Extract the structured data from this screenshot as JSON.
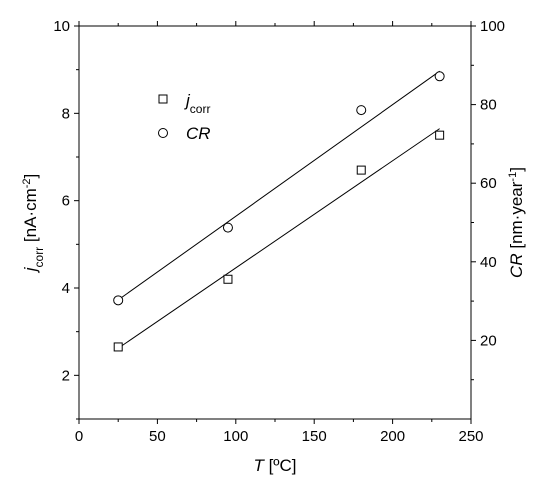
{
  "chart_data": {
    "type": "scatter",
    "xlabel": {
      "var": "T",
      "unit": " [ºC]"
    },
    "ylabel_left": {
      "var": "j",
      "sub": "corr",
      "unit": " [nA·cm",
      "sup": "-2",
      "close": "]"
    },
    "ylabel_right": {
      "var": "CR",
      "unit": " [nm·year",
      "sup": "-1",
      "close": "]"
    },
    "xlim": [
      0,
      250
    ],
    "ylim_left": [
      1,
      10
    ],
    "ylim_right": [
      0,
      100
    ],
    "x_ticks": [
      0,
      50,
      100,
      150,
      200,
      250
    ],
    "y_left_ticks": [
      2,
      4,
      6,
      8,
      10
    ],
    "y_right_ticks": [
      20,
      40,
      60,
      80,
      100
    ],
    "grid": false,
    "legend_position": "top-left",
    "series": [
      {
        "name": "j",
        "name_sub": "corr",
        "marker": "square",
        "axis": "left",
        "x": [
          25,
          95,
          180,
          230
        ],
        "y": [
          2.65,
          4.2,
          6.7,
          7.5
        ],
        "fit": {
          "x": [
            25,
            230
          ],
          "y": [
            2.62,
            7.65
          ]
        }
      },
      {
        "name": "CR",
        "marker": "circle",
        "axis": "right",
        "x": [
          25,
          95,
          180,
          230
        ],
        "y": [
          30.2,
          48.7,
          78.6,
          87.2
        ],
        "fit": {
          "x": [
            25,
            230
          ],
          "y": [
            30.3,
            88.5
          ]
        }
      }
    ]
  }
}
